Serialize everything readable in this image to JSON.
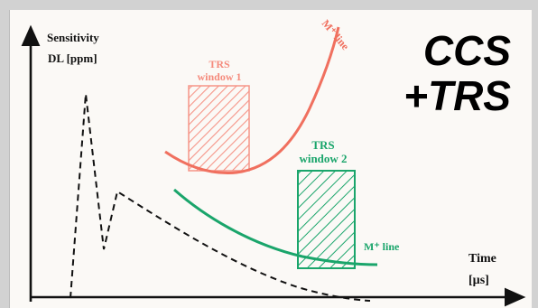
{
  "title_line1": "CCS",
  "title_line2": "+TRS",
  "y_axis_label_line1": "Sensitivity",
  "y_axis_label_line2": "DL [ppm]",
  "x_axis_label_line1": "Time",
  "x_axis_label_line2": "[µs]",
  "red_curve_label": "M⁺ line",
  "green_curve_label": "M⁺ line",
  "trs_window1_line1": "TRS",
  "trs_window1_line2": "window 1",
  "trs_window2_line1": "TRS",
  "trs_window2_line2": "window 2",
  "colors": {
    "red": "#f0705f",
    "red_hatch": "#f58a7c",
    "green": "#1aa56b",
    "black": "#111111"
  }
}
